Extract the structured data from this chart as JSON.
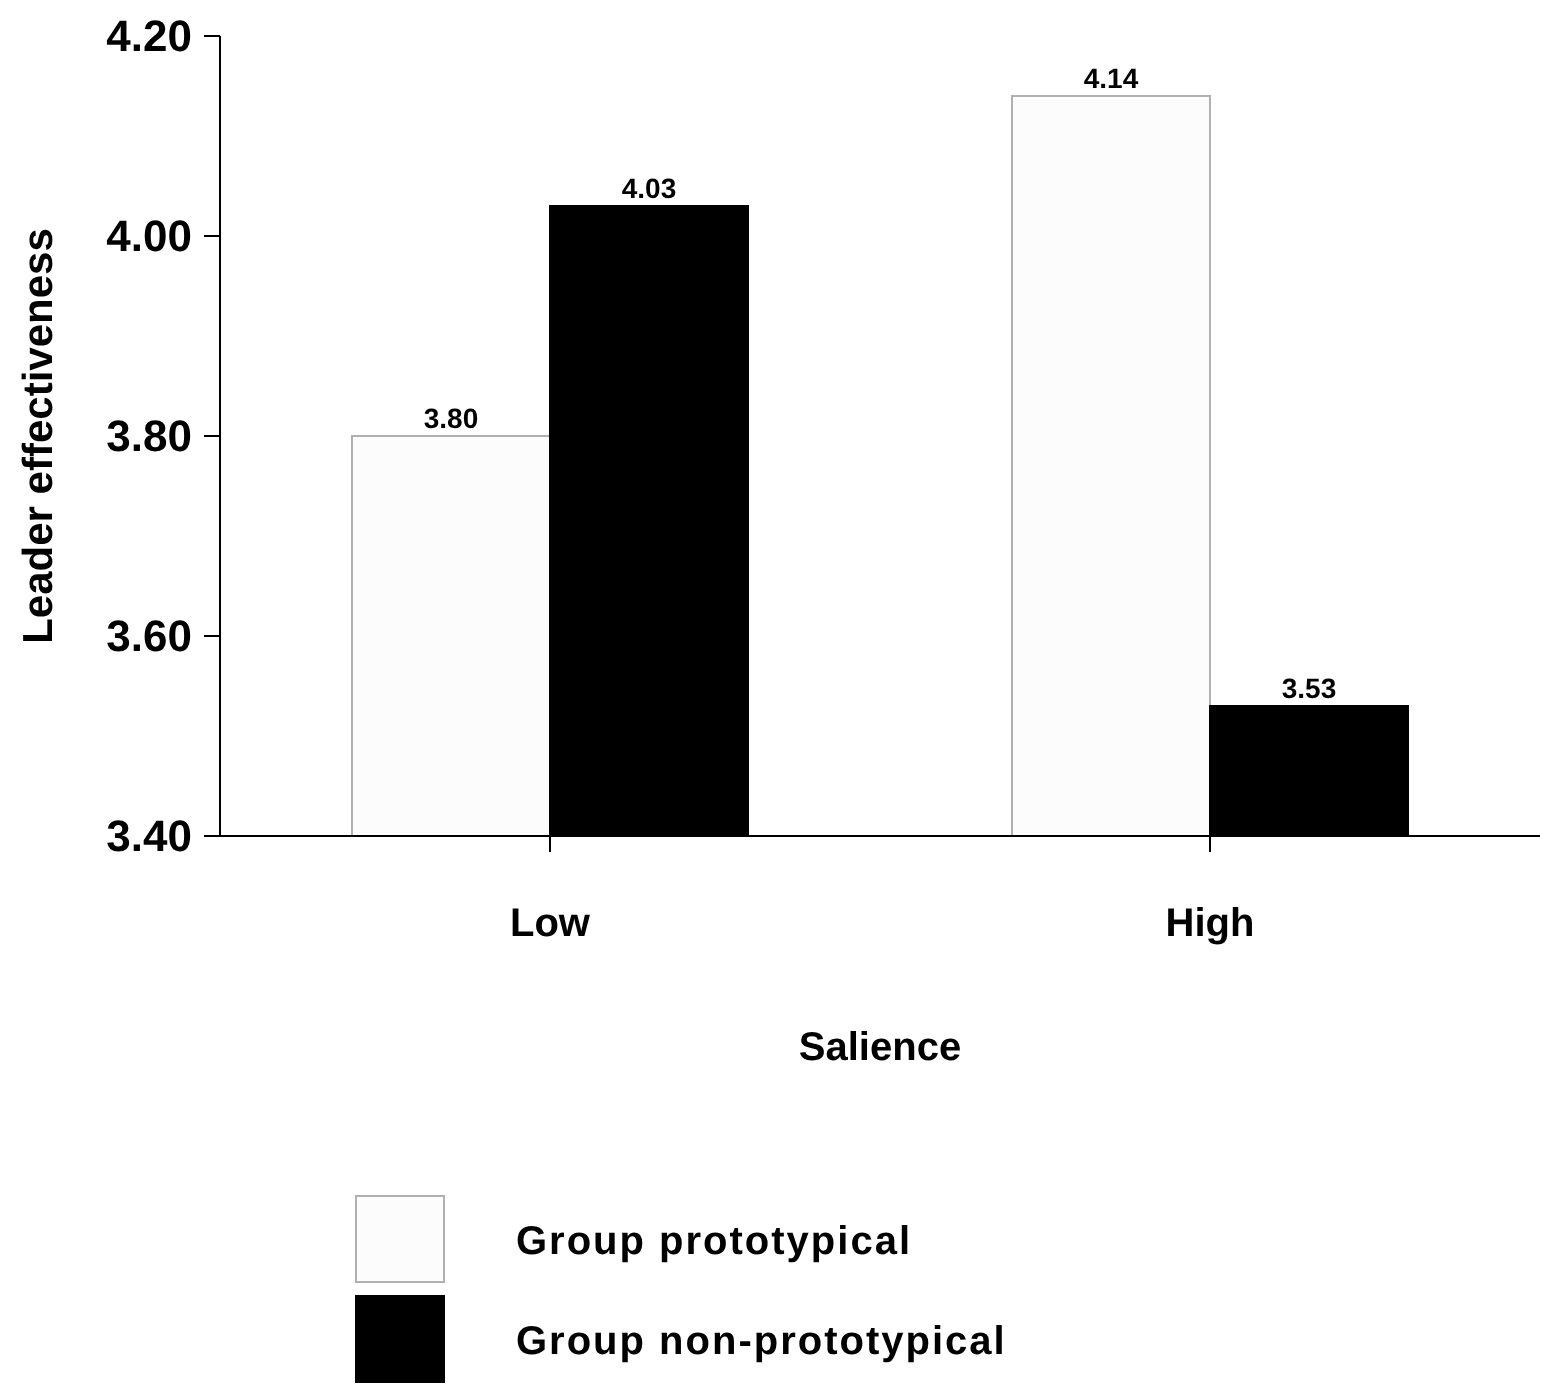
{
  "chart_data": {
    "type": "bar",
    "xlabel": "Salience",
    "ylabel": "Leader effectiveness",
    "categories": [
      "Low",
      "High"
    ],
    "series": [
      {
        "name": "Group prototypical",
        "color": "#fcfcfc",
        "values": [
          3.8,
          4.14
        ]
      },
      {
        "name": "Group non-prototypical",
        "color": "#000000",
        "values": [
          4.03,
          3.53
        ]
      }
    ],
    "ylim": [
      3.4,
      4.2
    ],
    "yticks": [
      {
        "value": 3.4,
        "label": "3.40"
      },
      {
        "value": 3.6,
        "label": "3.60"
      },
      {
        "value": 3.8,
        "label": "3.80"
      },
      {
        "value": 4.0,
        "label": "4.00"
      },
      {
        "value": 4.2,
        "label": "4.20"
      }
    ],
    "value_labels": [
      [
        "3.80",
        "4.14"
      ],
      [
        "4.03",
        "3.53"
      ]
    ],
    "legend": "bottom",
    "grid": false
  }
}
